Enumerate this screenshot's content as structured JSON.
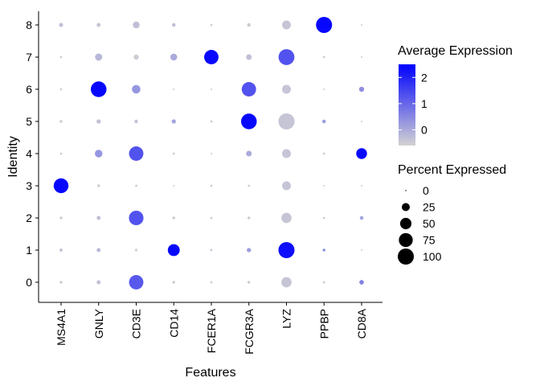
{
  "chart_data": {
    "type": "scatter",
    "subtype": "dot-plot",
    "xlabel": "Features",
    "ylabel": "Identity",
    "features": [
      "MS4A1",
      "GNLY",
      "CD3E",
      "CD14",
      "FCER1A",
      "FCGR3A",
      "LYZ",
      "PPBP",
      "CD8A"
    ],
    "identities": [
      "0",
      "1",
      "2",
      "3",
      "4",
      "5",
      "6",
      "7",
      "8"
    ],
    "points": [
      {
        "identity": "0",
        "values": [
          {
            "feature": "MS4A1",
            "avg_exp": -0.5,
            "pct": 3
          },
          {
            "feature": "GNLY",
            "avg_exp": -0.3,
            "pct": 6
          },
          {
            "feature": "CD3E",
            "avg_exp": 1.2,
            "pct": 80
          },
          {
            "feature": "CD14",
            "avg_exp": -0.5,
            "pct": 3
          },
          {
            "feature": "FCER1A",
            "avg_exp": -0.5,
            "pct": 2
          },
          {
            "feature": "FCGR3A",
            "avg_exp": -0.5,
            "pct": 3
          },
          {
            "feature": "LYZ",
            "avg_exp": -0.4,
            "pct": 40
          },
          {
            "feature": "PPBP",
            "avg_exp": -0.5,
            "pct": 2
          },
          {
            "feature": "CD8A",
            "avg_exp": 0.6,
            "pct": 8
          }
        ]
      },
      {
        "identity": "1",
        "values": [
          {
            "feature": "MS4A1",
            "avg_exp": -0.4,
            "pct": 4
          },
          {
            "feature": "GNLY",
            "avg_exp": -0.2,
            "pct": 6
          },
          {
            "feature": "CD3E",
            "avg_exp": -0.6,
            "pct": 3
          },
          {
            "feature": "CD14",
            "avg_exp": 2.4,
            "pct": 55
          },
          {
            "feature": "FCER1A",
            "avg_exp": -0.4,
            "pct": 2
          },
          {
            "feature": "FCGR3A",
            "avg_exp": 0.2,
            "pct": 7
          },
          {
            "feature": "LYZ",
            "avg_exp": 2.3,
            "pct": 100
          },
          {
            "feature": "PPBP",
            "avg_exp": 0.4,
            "pct": 3
          },
          {
            "feature": "CD8A",
            "avg_exp": -0.5,
            "pct": 1
          }
        ]
      },
      {
        "identity": "2",
        "values": [
          {
            "feature": "MS4A1",
            "avg_exp": -0.5,
            "pct": 3
          },
          {
            "feature": "GNLY",
            "avg_exp": -0.3,
            "pct": 6
          },
          {
            "feature": "CD3E",
            "avg_exp": 1.3,
            "pct": 82
          },
          {
            "feature": "CD14",
            "avg_exp": -0.5,
            "pct": 3
          },
          {
            "feature": "FCER1A",
            "avg_exp": -0.5,
            "pct": 2
          },
          {
            "feature": "FCGR3A",
            "avg_exp": -0.5,
            "pct": 3
          },
          {
            "feature": "LYZ",
            "avg_exp": -0.4,
            "pct": 40
          },
          {
            "feature": "PPBP",
            "avg_exp": -0.5,
            "pct": 2
          },
          {
            "feature": "CD8A",
            "avg_exp": 0.1,
            "pct": 5
          }
        ]
      },
      {
        "identity": "3",
        "values": [
          {
            "feature": "MS4A1",
            "avg_exp": 2.4,
            "pct": 85
          },
          {
            "feature": "GNLY",
            "avg_exp": -0.5,
            "pct": 3
          },
          {
            "feature": "CD3E",
            "avg_exp": -0.5,
            "pct": 2
          },
          {
            "feature": "CD14",
            "avg_exp": -0.5,
            "pct": 1
          },
          {
            "feature": "FCER1A",
            "avg_exp": -0.5,
            "pct": 2
          },
          {
            "feature": "FCGR3A",
            "avg_exp": -0.5,
            "pct": 2
          },
          {
            "feature": "LYZ",
            "avg_exp": -0.4,
            "pct": 30
          },
          {
            "feature": "PPBP",
            "avg_exp": -0.5,
            "pct": 1
          },
          {
            "feature": "CD8A",
            "avg_exp": -0.5,
            "pct": 1
          }
        ]
      },
      {
        "identity": "4",
        "values": [
          {
            "feature": "MS4A1",
            "avg_exp": -0.5,
            "pct": 2
          },
          {
            "feature": "GNLY",
            "avg_exp": 0.3,
            "pct": 22
          },
          {
            "feature": "CD3E",
            "avg_exp": 1.3,
            "pct": 80
          },
          {
            "feature": "CD14",
            "avg_exp": -0.5,
            "pct": 2
          },
          {
            "feature": "FCER1A",
            "avg_exp": -0.5,
            "pct": 1
          },
          {
            "feature": "FCGR3A",
            "avg_exp": 0.0,
            "pct": 12
          },
          {
            "feature": "LYZ",
            "avg_exp": -0.4,
            "pct": 30
          },
          {
            "feature": "PPBP",
            "avg_exp": -0.5,
            "pct": 2
          },
          {
            "feature": "CD8A",
            "avg_exp": 2.4,
            "pct": 45
          }
        ]
      },
      {
        "identity": "5",
        "values": [
          {
            "feature": "MS4A1",
            "avg_exp": -0.5,
            "pct": 3
          },
          {
            "feature": "GNLY",
            "avg_exp": -0.3,
            "pct": 7
          },
          {
            "feature": "CD3E",
            "avg_exp": -0.4,
            "pct": 5
          },
          {
            "feature": "CD14",
            "avg_exp": 0.1,
            "pct": 7
          },
          {
            "feature": "FCER1A",
            "avg_exp": -0.5,
            "pct": 2
          },
          {
            "feature": "FCGR3A",
            "avg_exp": 2.4,
            "pct": 95
          },
          {
            "feature": "LYZ",
            "avg_exp": -0.4,
            "pct": 100
          },
          {
            "feature": "PPBP",
            "avg_exp": 0.2,
            "pct": 5
          },
          {
            "feature": "CD8A",
            "avg_exp": -0.5,
            "pct": 1
          }
        ]
      },
      {
        "identity": "6",
        "values": [
          {
            "feature": "MS4A1",
            "avg_exp": -0.5,
            "pct": 2
          },
          {
            "feature": "GNLY",
            "avg_exp": 2.4,
            "pct": 95
          },
          {
            "feature": "CD3E",
            "avg_exp": 0.3,
            "pct": 28
          },
          {
            "feature": "CD14",
            "avg_exp": -0.5,
            "pct": 1
          },
          {
            "feature": "FCER1A",
            "avg_exp": -0.5,
            "pct": 1
          },
          {
            "feature": "FCGR3A",
            "avg_exp": 1.3,
            "pct": 80
          },
          {
            "feature": "LYZ",
            "avg_exp": -0.4,
            "pct": 30
          },
          {
            "feature": "PPBP",
            "avg_exp": -0.5,
            "pct": 1
          },
          {
            "feature": "CD8A",
            "avg_exp": 0.4,
            "pct": 10
          }
        ]
      },
      {
        "identity": "7",
        "values": [
          {
            "feature": "MS4A1",
            "avg_exp": -0.5,
            "pct": 2
          },
          {
            "feature": "GNLY",
            "avg_exp": -0.2,
            "pct": 20
          },
          {
            "feature": "CD3E",
            "avg_exp": -0.5,
            "pct": 10
          },
          {
            "feature": "CD14",
            "avg_exp": 0.0,
            "pct": 18
          },
          {
            "feature": "FCER1A",
            "avg_exp": 2.4,
            "pct": 80
          },
          {
            "feature": "FCGR3A",
            "avg_exp": -0.3,
            "pct": 12
          },
          {
            "feature": "LYZ",
            "avg_exp": 1.3,
            "pct": 98
          },
          {
            "feature": "PPBP",
            "avg_exp": -0.5,
            "pct": 2
          },
          {
            "feature": "CD8A",
            "avg_exp": -0.5,
            "pct": 1
          }
        ]
      },
      {
        "identity": "8",
        "values": [
          {
            "feature": "MS4A1",
            "avg_exp": -0.3,
            "pct": 6
          },
          {
            "feature": "GNLY",
            "avg_exp": -0.4,
            "pct": 6
          },
          {
            "feature": "CD3E",
            "avg_exp": -0.3,
            "pct": 18
          },
          {
            "feature": "CD14",
            "avg_exp": -0.3,
            "pct": 5
          },
          {
            "feature": "FCER1A",
            "avg_exp": -0.5,
            "pct": 2
          },
          {
            "feature": "FCGR3A",
            "avg_exp": -0.5,
            "pct": 5
          },
          {
            "feature": "LYZ",
            "avg_exp": -0.4,
            "pct": 30
          },
          {
            "feature": "PPBP",
            "avg_exp": 2.4,
            "pct": 100
          },
          {
            "feature": "CD8A",
            "avg_exp": -0.5,
            "pct": 1
          }
        ]
      }
    ],
    "color_scale": {
      "low_color": "#d3d3d3",
      "high_color": "#0000ff",
      "range": [
        -0.6,
        2.5
      ],
      "ticks": [
        0,
        1,
        2
      ]
    },
    "size_scale": {
      "range": [
        0,
        100
      ],
      "ticks": [
        0,
        25,
        50,
        75,
        100
      ]
    },
    "grid": false,
    "legend_position": "right"
  },
  "legend": {
    "color_title": "Average Expression",
    "size_title": "Percent Expressed",
    "color_tick_labels": [
      "0",
      "1",
      "2"
    ],
    "size_tick_labels": [
      "0",
      "25",
      "50",
      "75",
      "100"
    ]
  }
}
